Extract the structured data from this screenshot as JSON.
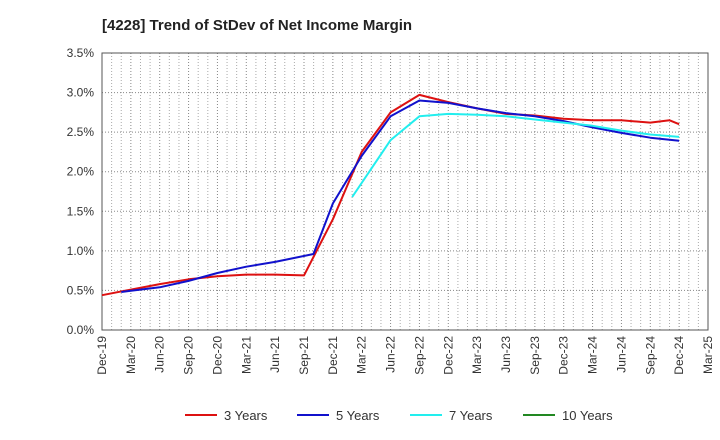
{
  "chart_data": {
    "type": "line",
    "title": "[4228]  Trend of StDev of Net Income Margin",
    "xlabel": "",
    "ylabel": "",
    "x_ticks": [
      "Dec-19",
      "Mar-20",
      "Jun-20",
      "Sep-20",
      "Dec-20",
      "Mar-21",
      "Jun-21",
      "Sep-21",
      "Dec-21",
      "Mar-22",
      "Jun-22",
      "Sep-22",
      "Dec-22",
      "Mar-23",
      "Jun-23",
      "Sep-23",
      "Dec-23",
      "Mar-24",
      "Jun-24",
      "Sep-24",
      "Dec-24",
      "Mar-25"
    ],
    "y_ticks": [
      "0.0%",
      "0.5%",
      "1.0%",
      "1.5%",
      "2.0%",
      "2.5%",
      "3.0%",
      "3.5%"
    ],
    "ylim": [
      0,
      3.5
    ],
    "grid": true,
    "legend_position": "bottom",
    "series": [
      {
        "name": "3 Years",
        "color": "#dd1111",
        "values": [
          0.44,
          0.51,
          0.58,
          0.64,
          0.68,
          0.7,
          0.7,
          0.69,
          1.4,
          2.25,
          2.75,
          2.97,
          2.88,
          2.8,
          2.73,
          2.71,
          2.67,
          2.65,
          2.65,
          2.62,
          2.65,
          2.6
        ],
        "x_index": [
          0,
          1,
          2,
          3,
          4,
          5,
          6,
          7,
          8,
          9,
          10,
          11,
          12,
          13,
          14,
          15,
          16,
          17,
          18,
          19,
          19.67,
          20
        ]
      },
      {
        "name": "5 Years",
        "color": "#1111cc",
        "values": [
          0.48,
          0.54,
          0.62,
          0.72,
          0.8,
          0.86,
          0.96,
          1.6,
          2.2,
          2.7,
          2.9,
          2.87,
          2.8,
          2.74,
          2.7,
          2.64,
          2.56,
          2.49,
          2.43,
          2.39
        ],
        "x_index": [
          0.67,
          2,
          3,
          4,
          5,
          6,
          7.33,
          8,
          9,
          10,
          11,
          12,
          13,
          14,
          15,
          16,
          17,
          18,
          19,
          20
        ]
      },
      {
        "name": "7 Years",
        "color": "#22eeee",
        "values": [
          1.68,
          2.4,
          2.7,
          2.73,
          2.72,
          2.7,
          2.66,
          2.62,
          2.58,
          2.52,
          2.47,
          2.44
        ],
        "x_index": [
          8.67,
          10,
          11,
          12,
          13,
          14,
          15,
          16,
          17,
          18,
          19,
          20
        ]
      },
      {
        "name": "10 Years",
        "color": "#228822",
        "values": [],
        "x_index": []
      }
    ]
  }
}
